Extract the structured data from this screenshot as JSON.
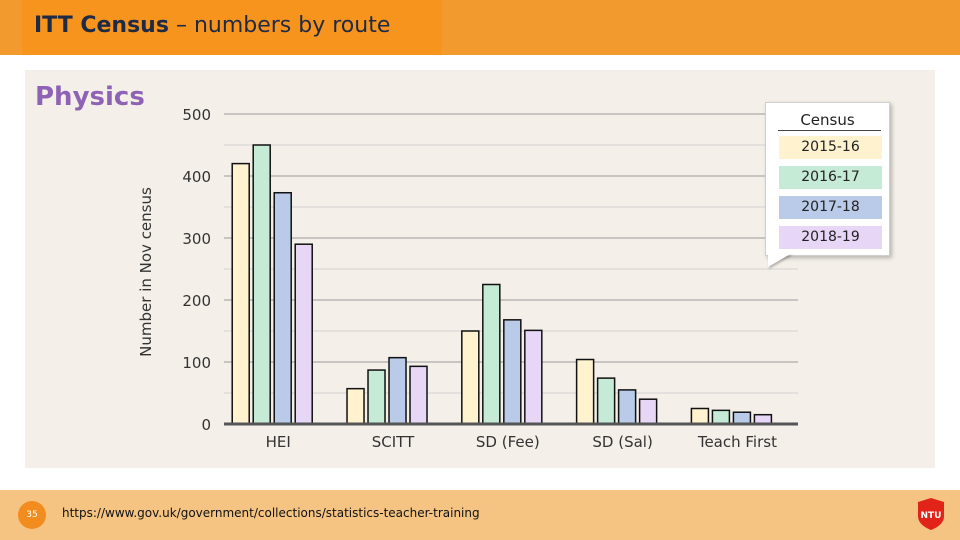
{
  "header": {
    "title_bold": "ITT Census",
    "title_rest": " – numbers by route"
  },
  "subject": "Physics",
  "footer": {
    "page_number": "35",
    "url": "https://www.gov.uk/government/collections/statistics-teacher-training",
    "logo_text": "NTU"
  },
  "legend": {
    "title": "Census"
  },
  "colors": {
    "accent": "#f7941e",
    "footer": "#f5c483",
    "subject": "#8e63b5",
    "series": [
      "#fff3cf",
      "#c5ebd6",
      "#b9cbe8",
      "#e8d6f7"
    ]
  },
  "chart_data": {
    "type": "bar",
    "title": "",
    "xlabel": "",
    "ylabel": "Number in Nov census",
    "ylim": [
      0,
      500
    ],
    "yticks": [
      0,
      100,
      200,
      300,
      400,
      500
    ],
    "grid": true,
    "legend_position": "top-right",
    "categories": [
      "HEI",
      "SCITT",
      "SD (Fee)",
      "SD (Sal)",
      "Teach First"
    ],
    "series": [
      {
        "name": "2015-16",
        "values": [
          420,
          57,
          150,
          104,
          25
        ]
      },
      {
        "name": "2016-17",
        "values": [
          450,
          87,
          225,
          74,
          22
        ]
      },
      {
        "name": "2017-18",
        "values": [
          373,
          107,
          168,
          55,
          19
        ]
      },
      {
        "name": "2018-19",
        "values": [
          290,
          93,
          151,
          40,
          15
        ]
      }
    ]
  }
}
